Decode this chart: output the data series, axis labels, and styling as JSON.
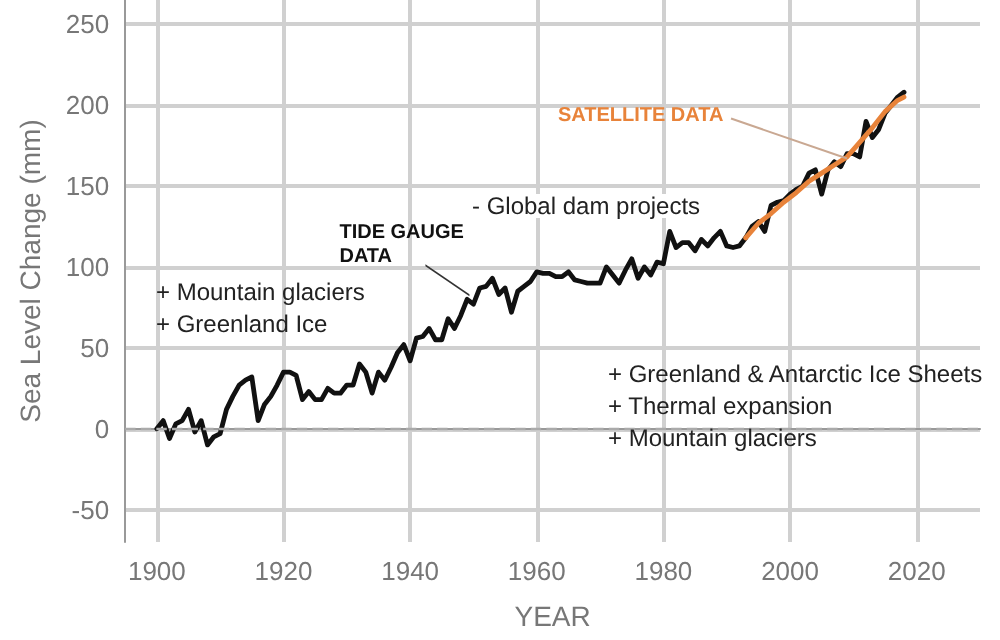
{
  "chart_data": {
    "type": "line",
    "xlabel": "YEAR",
    "ylabel": "Sea Level Change (mm)",
    "xlim": [
      1895,
      2030
    ],
    "xticks": [
      1900,
      1920,
      1940,
      1960,
      1980,
      2000,
      2020
    ],
    "ylim": [
      -70,
      265
    ],
    "yticks": [
      -50,
      0,
      50,
      100,
      150,
      200,
      250
    ],
    "grid": true,
    "marker": "none",
    "line_style": "solid",
    "ref_lines": [
      {
        "axis": "y",
        "value": 0,
        "color": "#aaaaaa",
        "line_style": "dashed"
      }
    ],
    "annotations": [
      {
        "text": "TIDE GAUGE DATA",
        "x": 1950,
        "y": 80
      },
      {
        "text": "SATELLITE DATA",
        "x": 2009,
        "y": 167
      },
      "+ Mountain glaciers",
      "+ Greenland Ice",
      "- Global dam projects",
      "+ Greenland & Antarctic Ice Sheets",
      "+ Thermal expansion",
      "+ Mountain glaciers"
    ],
    "series": [
      {
        "color": "#111111",
        "x": [
          1900,
          1901,
          1902,
          1903,
          1904,
          1905,
          1906,
          1907,
          1908,
          1909,
          1910,
          1911,
          1912,
          1913,
          1914,
          1915,
          1916,
          1917,
          1918,
          1919,
          1920,
          1921,
          1922,
          1923,
          1924,
          1925,
          1926,
          1927,
          1928,
          1929,
          1930,
          1931,
          1932,
          1933,
          1934,
          1935,
          1936,
          1937,
          1938,
          1939,
          1940,
          1941,
          1942,
          1943,
          1944,
          1945,
          1946,
          1947,
          1948,
          1949,
          1950,
          1951,
          1952,
          1953,
          1954,
          1955,
          1956,
          1957,
          1958,
          1959,
          1960,
          1961,
          1962,
          1963,
          1964,
          1965,
          1966,
          1967,
          1968,
          1969,
          1970,
          1971,
          1972,
          1973,
          1974,
          1975,
          1976,
          1977,
          1978,
          1979,
          1980,
          1981,
          1982,
          1983,
          1984,
          1985,
          1986,
          1987,
          1988,
          1989,
          1990,
          1991,
          1992,
          1993,
          1994,
          1995,
          1996,
          1997,
          1998,
          1999,
          2000,
          2001,
          2002,
          2003,
          2004,
          2005,
          2006,
          2007,
          2008,
          2009,
          2010,
          2011,
          2012,
          2013,
          2014,
          2015,
          2016,
          2017,
          2018
        ],
        "values": [
          0,
          5,
          -6,
          3,
          5,
          12,
          -2,
          5,
          -10,
          -5,
          -3,
          12,
          20,
          27,
          30,
          32,
          5,
          15,
          20,
          27,
          35,
          35,
          33,
          18,
          23,
          18,
          18,
          25,
          22,
          22,
          27,
          27,
          40,
          35,
          22,
          35,
          30,
          38,
          47,
          52,
          42,
          56,
          57,
          62,
          55,
          55,
          68,
          62,
          70,
          80,
          77,
          87,
          88,
          93,
          83,
          87,
          72,
          85,
          88,
          91,
          97,
          96,
          96,
          94,
          94,
          97,
          92,
          91,
          90,
          90,
          90,
          100,
          95,
          90,
          98,
          105,
          93,
          100,
          95,
          103,
          102,
          122,
          112,
          115,
          115,
          110,
          117,
          113,
          118,
          122,
          113,
          112,
          113,
          118,
          125,
          128,
          122,
          138,
          140,
          141,
          145,
          148,
          150,
          158,
          160,
          145,
          160,
          165,
          162,
          170,
          170,
          168,
          190,
          180,
          185,
          195,
          200,
          205,
          208
        ]
      },
      {
        "color": "#e8833a",
        "x": [
          1993,
          1995,
          1997,
          1999,
          2001,
          2003,
          2005,
          2007,
          2009,
          2011,
          2013,
          2015,
          2017,
          2018
        ],
        "values": [
          118,
          127,
          133,
          140,
          146,
          153,
          158,
          163,
          168,
          177,
          186,
          196,
          203,
          205
        ]
      }
    ]
  }
}
